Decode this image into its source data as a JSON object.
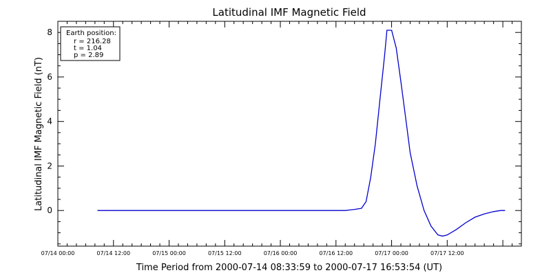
{
  "chart_data": {
    "type": "line",
    "title": "Latitudinal IMF Magnetic Field",
    "ylabel": "Latitudinal IMF Magnetic Field (nT)",
    "xlabel": "Time Period from 2000-07-14 08:33:59 to 2000-07-17 16:53:54 (UT)",
    "xlim": [
      "2000-07-14 00:00",
      "2000-07-18 04:00"
    ],
    "ylim": [
      -1.6,
      8.5
    ],
    "grid": false,
    "y_ticks": [
      0,
      2,
      4,
      6,
      8
    ],
    "x_ticks": [
      "07/14 00:00",
      "07/14 12:00",
      "07/15 00:00",
      "07/15 12:00",
      "07/16 00:00",
      "07/16 12:00",
      "07/17 00:00",
      "07/17 12:00"
    ],
    "info_box": {
      "heading": "Earth position:",
      "lines": [
        "r = 216.28",
        "t = 1.04",
        "p = 2.89"
      ]
    },
    "series": [
      {
        "color": "#0000cc",
        "points": [
          [
            "2000-07-14 08:33",
            0.0
          ],
          [
            "2000-07-15 12:00",
            0.0
          ],
          [
            "2000-07-16 12:00",
            0.0
          ],
          [
            "2000-07-16 14:00",
            0.0
          ],
          [
            "2000-07-16 16:00",
            0.05
          ],
          [
            "2000-07-16 17:30",
            0.1
          ],
          [
            "2000-07-16 18:30",
            0.4
          ],
          [
            "2000-07-16 19:30",
            1.5
          ],
          [
            "2000-07-16 20:30",
            3.0
          ],
          [
            "2000-07-16 21:30",
            5.0
          ],
          [
            "2000-07-16 22:30",
            7.0
          ],
          [
            "2000-07-16 23:00",
            8.1
          ],
          [
            "2000-07-17 00:00",
            8.1
          ],
          [
            "2000-07-17 01:00",
            7.3
          ],
          [
            "2000-07-17 02:00",
            5.8
          ],
          [
            "2000-07-17 03:00",
            4.2
          ],
          [
            "2000-07-17 04:00",
            2.6
          ],
          [
            "2000-07-17 05:30",
            1.1
          ],
          [
            "2000-07-17 07:00",
            0.0
          ],
          [
            "2000-07-17 08:30",
            -0.7
          ],
          [
            "2000-07-17 10:00",
            -1.1
          ],
          [
            "2000-07-17 11:00",
            -1.15
          ],
          [
            "2000-07-17 12:00",
            -1.1
          ],
          [
            "2000-07-17 14:00",
            -0.85
          ],
          [
            "2000-07-17 16:00",
            -0.55
          ],
          [
            "2000-07-17 18:00",
            -0.3
          ],
          [
            "2000-07-17 20:00",
            -0.15
          ],
          [
            "2000-07-17 22:00",
            -0.05
          ],
          [
            "2000-07-17 23:30",
            0.0
          ],
          [
            "2000-07-18 00:30",
            0.0
          ]
        ]
      }
    ]
  }
}
